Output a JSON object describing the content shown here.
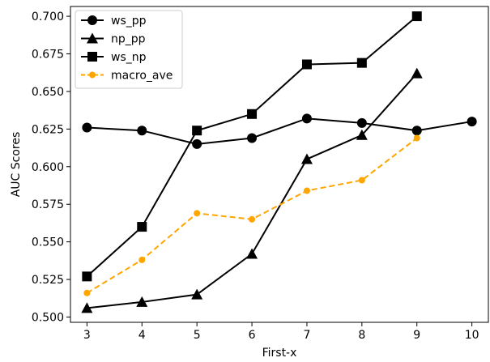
{
  "chart_data": {
    "type": "line",
    "title": "",
    "xlabel": "First-x",
    "ylabel": "AUC Scores",
    "xlim": [
      2.7,
      10.3
    ],
    "ylim": [
      0.4965,
      0.7065
    ],
    "xticks": [
      3,
      4,
      5,
      6,
      7,
      8,
      9,
      10
    ],
    "yticks": [
      0.5,
      0.525,
      0.55,
      0.575,
      0.6,
      0.625,
      0.65,
      0.675,
      0.7
    ],
    "ytick_labels": [
      "0.500",
      "0.525",
      "0.550",
      "0.575",
      "0.600",
      "0.625",
      "0.650",
      "0.675",
      "0.700"
    ],
    "grid": false,
    "legend_position": "top-left",
    "series": [
      {
        "name": "ws_pp",
        "color": "#000000",
        "marker": "circle",
        "linestyle": "solid",
        "x": [
          3,
          4,
          5,
          6,
          7,
          8,
          9,
          10
        ],
        "y": [
          0.626,
          0.624,
          0.615,
          0.619,
          0.632,
          0.629,
          0.624,
          0.63
        ]
      },
      {
        "name": "np_pp",
        "color": "#000000",
        "marker": "triangle",
        "linestyle": "solid",
        "x": [
          3,
          4,
          5,
          6,
          7,
          8,
          9
        ],
        "y": [
          0.506,
          0.51,
          0.515,
          0.542,
          0.605,
          0.621,
          0.662
        ]
      },
      {
        "name": "ws_np",
        "color": "#000000",
        "marker": "square",
        "linestyle": "solid",
        "x": [
          3,
          4,
          5,
          6,
          7,
          8,
          9
        ],
        "y": [
          0.527,
          0.56,
          0.624,
          0.635,
          0.668,
          0.669,
          0.7
        ]
      },
      {
        "name": "macro_ave",
        "color": "#FFA500",
        "marker": "circle-small",
        "linestyle": "dashed",
        "x": [
          3,
          4,
          5,
          6,
          7,
          8,
          9
        ],
        "y": [
          0.516,
          0.538,
          0.569,
          0.565,
          0.584,
          0.591,
          0.619
        ]
      }
    ]
  }
}
